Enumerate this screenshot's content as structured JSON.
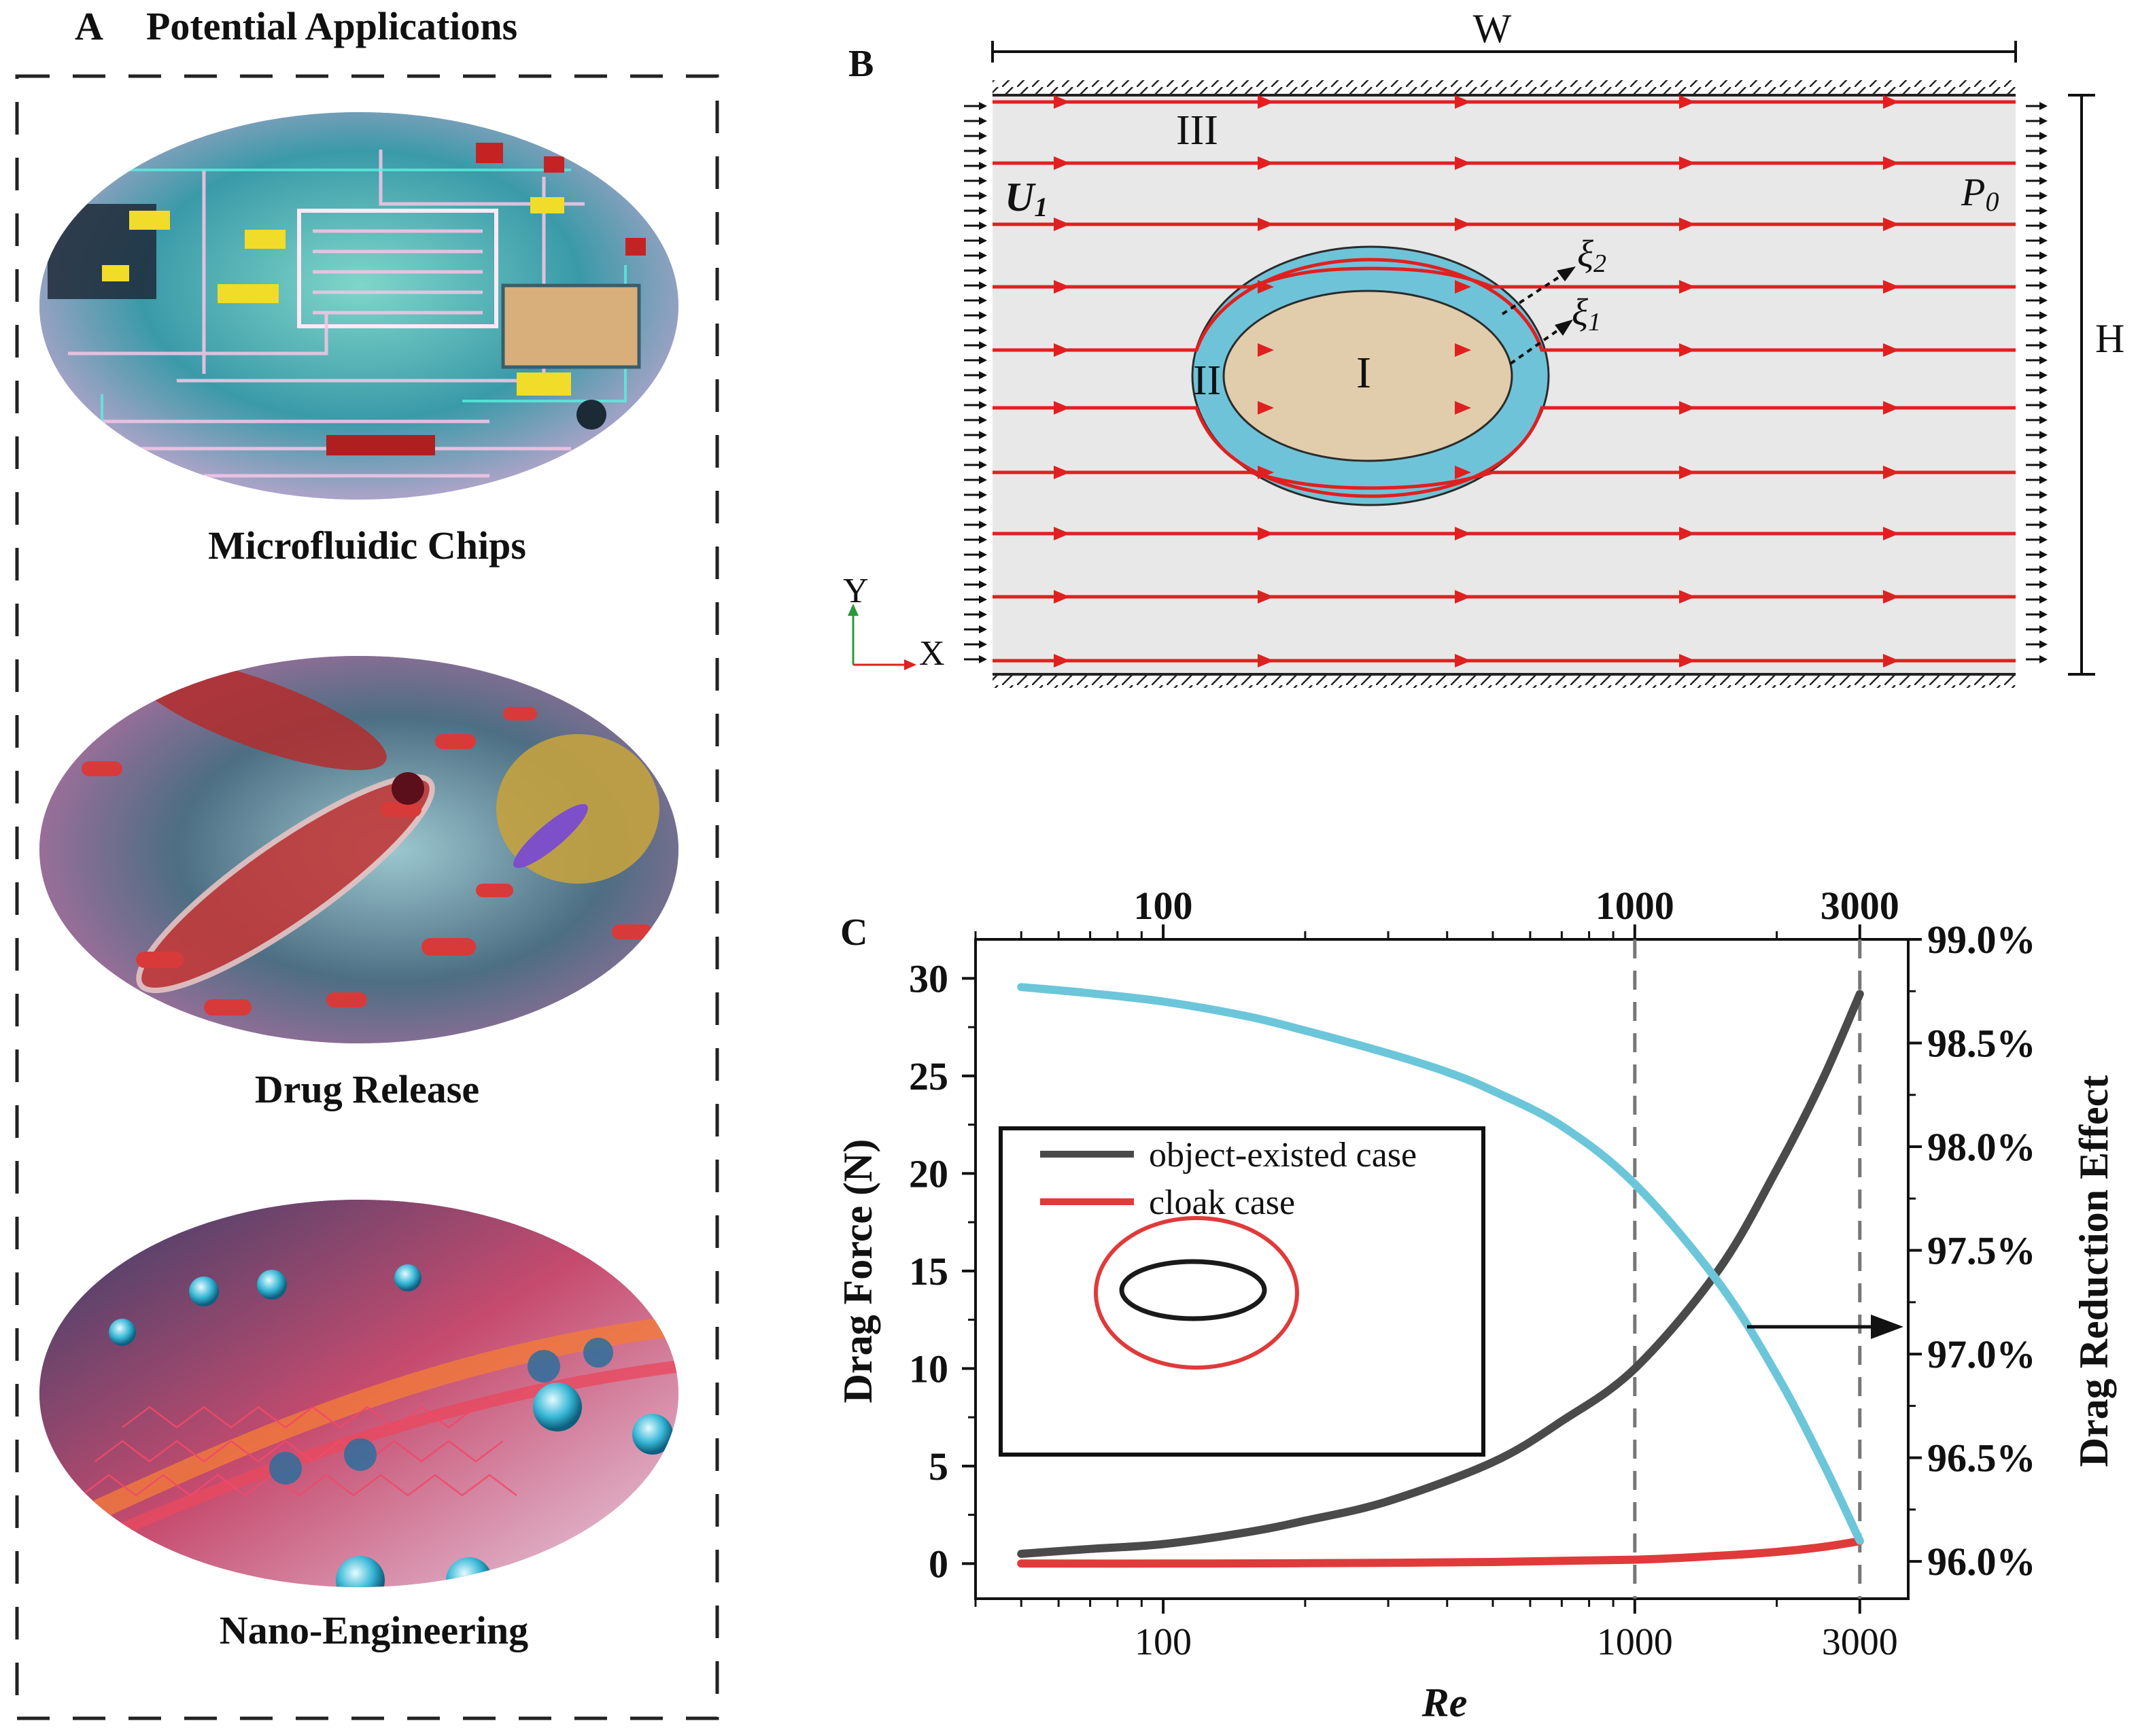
{
  "panel_a": {
    "letter": "A",
    "title": "Potential Applications",
    "items": [
      {
        "label": "Microfluidic Chips",
        "illustration": "microfluidic-chip-illustration"
      },
      {
        "label": "Drug Release",
        "illustration": "drug-release-illustration"
      },
      {
        "label": "Nano-Engineering",
        "illustration": "nano-engineering-illustration"
      }
    ]
  },
  "panel_b": {
    "letter": "B",
    "width_label": "W",
    "height_label": "H",
    "inlet_label": "U",
    "inlet_sub": "1",
    "outlet_label": "P",
    "outlet_sub": "0",
    "region_outer": "III",
    "region_shell": "II",
    "region_core": "I",
    "xi2": "ξ",
    "xi2_sub": "2",
    "xi1": "ξ",
    "xi1_sub": "1",
    "axis_y": "Y",
    "axis_x": "X",
    "colors": {
      "fluid": "#e8e8e8",
      "shell": "#6fc3d8",
      "core": "#e1cdab",
      "streamline": "#e02020"
    }
  },
  "chart_data": {
    "letter": "C",
    "type": "line",
    "xscale": "log",
    "xlabel": "Re",
    "ylabel": "Drag Force (N)",
    "y2label": "Drag Reduction Effect",
    "xlim": [
      40,
      3800
    ],
    "ylim": [
      -1.8,
      32
    ],
    "y2lim": [
      95.82,
      99.0
    ],
    "x_ticks": [
      "100",
      "1000",
      "3000"
    ],
    "x_ticks_top": [
      "100",
      "1000",
      "3000"
    ],
    "y_ticks": [
      "0",
      "5",
      "10",
      "15",
      "20",
      "25",
      "30"
    ],
    "y2_ticks": [
      "96.0%",
      "96.5%",
      "97.0%",
      "97.5%",
      "98.0%",
      "98.5%",
      "99.0%"
    ],
    "reference_lines_x": [
      1000,
      3000
    ],
    "legend": {
      "placement": "upper-left",
      "entries": [
        "object-existed case",
        "cloak case"
      ]
    },
    "colors": {
      "object": "#4a4a4a",
      "cloak": "#e03a3a",
      "reduction": "#6cc6d9"
    },
    "series": [
      {
        "name": "object-existed case",
        "axis": "left",
        "x": [
          50,
          70,
          100,
          150,
          200,
          300,
          500,
          700,
          1000,
          1500,
          2000,
          2500,
          3000
        ],
        "values": [
          0.5,
          0.75,
          1.0,
          1.6,
          2.2,
          3.2,
          5.2,
          7.3,
          10.0,
          15.0,
          20.2,
          24.8,
          29.2
        ]
      },
      {
        "name": "cloak case",
        "axis": "left",
        "x": [
          50,
          100,
          200,
          500,
          1000,
          1500,
          2000,
          2500,
          3000
        ],
        "values": [
          0.0,
          0.0,
          0.02,
          0.08,
          0.2,
          0.4,
          0.6,
          0.85,
          1.15
        ]
      },
      {
        "name": "drag reduction effect",
        "axis": "right",
        "x": [
          50,
          70,
          100,
          150,
          200,
          300,
          400,
          500,
          700,
          1000,
          1500,
          2000,
          2500,
          3000
        ],
        "values": [
          98.77,
          98.74,
          98.7,
          98.63,
          98.56,
          98.45,
          98.36,
          98.27,
          98.1,
          97.82,
          97.35,
          96.9,
          96.48,
          96.1
        ]
      }
    ]
  }
}
